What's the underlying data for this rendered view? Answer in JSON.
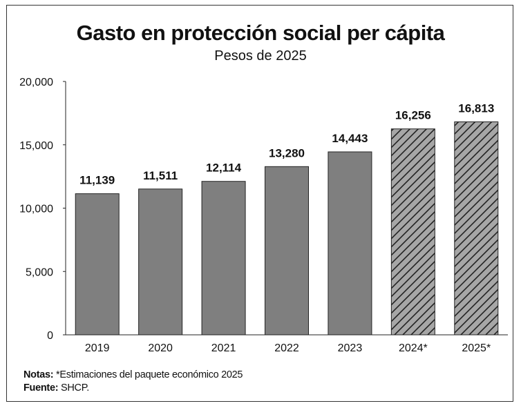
{
  "chart_data": {
    "type": "bar",
    "title": "Gasto en protección social per cápita",
    "subtitle": "Pesos de 2025",
    "categories": [
      "2019",
      "2020",
      "2021",
      "2022",
      "2023",
      "2024*",
      "2025*"
    ],
    "values": [
      11139,
      11511,
      12114,
      13280,
      14443,
      16256,
      16813
    ],
    "value_labels": [
      "11,139",
      "11,511",
      "12,114",
      "13,280",
      "14,443",
      "16,256",
      "16,813"
    ],
    "estimated": [
      false,
      false,
      false,
      false,
      false,
      true,
      true
    ],
    "ylim": [
      0,
      20000
    ],
    "y_ticks": [
      0,
      5000,
      10000,
      15000,
      20000
    ],
    "y_tick_labels": [
      "0",
      "5,000",
      "10,000",
      "15,000",
      "20,000"
    ],
    "xlabel": "",
    "ylabel": "",
    "grid": false,
    "colors": {
      "bar": "#7f7f7f",
      "bar_stroke": "#222222",
      "hatch_bg": "#a6a6a6",
      "hatch_line": "#222222"
    }
  },
  "notes": {
    "notes_label": "Notas:",
    "notes_text": " *Estimaciones del paquete económico 2025",
    "source_label": "Fuente:",
    "source_text": " SHCP."
  }
}
